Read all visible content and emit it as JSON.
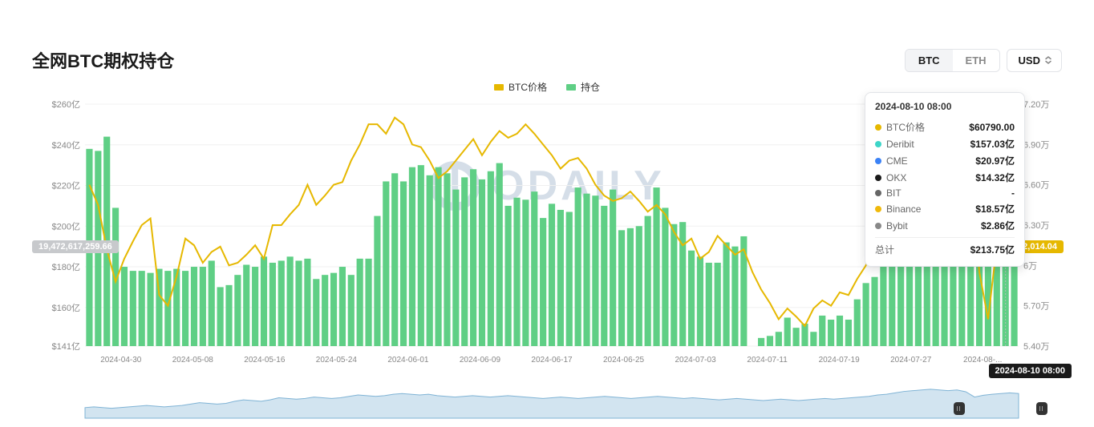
{
  "title": "全网BTC期权持仓",
  "segments": {
    "btc": "BTC",
    "eth": "ETH"
  },
  "active_segment": "btc",
  "currency": {
    "label": "USD"
  },
  "legend": {
    "price_label": "BTC价格",
    "oi_label": "持仓"
  },
  "colors": {
    "bar": "#5fcf85",
    "line": "#e6b800",
    "grid": "#f0f0f0",
    "axis_text": "#888",
    "left_badge_bg": "#c7c9cc",
    "right_badge_bg": "#e6b800",
    "tooltip_border": "#e2e4e8",
    "watermark": "#5a7fa6",
    "brush_area": "#7fb3d5"
  },
  "left_axis": {
    "ticks": [
      "$141亿",
      "$160亿",
      "$180亿",
      "$200亿",
      "$220亿",
      "$240亿",
      "$260亿"
    ],
    "min": 141,
    "max": 260
  },
  "right_axis": {
    "ticks": [
      "5.40万",
      "5.70万",
      "6万",
      "6.30万",
      "6.60万",
      "6.90万",
      "7.20万"
    ],
    "min": 5.4,
    "max": 7.2
  },
  "x_axis_labels": [
    "2024-04-30",
    "2024-05-08",
    "2024-05-16",
    "2024-05-24",
    "2024-06-01",
    "2024-06-09",
    "2024-06-17",
    "2024-06-25",
    "2024-07-03",
    "2024-07-11",
    "2024-07-19",
    "2024-07-27",
    "2024-08-..."
  ],
  "left_badge": "19,472,617,259.66",
  "right_badge": "62,014.04",
  "x_hover_label": "2024-08-10 08:00",
  "bars_values": [
    238,
    237,
    244,
    209,
    180,
    178,
    178,
    177,
    179,
    178,
    179,
    178,
    180,
    180,
    183,
    170,
    171,
    176,
    181,
    180,
    185,
    182,
    183,
    185,
    183,
    184,
    174,
    176,
    177,
    180,
    176,
    184,
    184,
    205,
    222,
    226,
    222,
    229,
    230,
    225,
    229,
    226,
    218,
    224,
    228,
    223,
    227,
    231,
    210,
    214,
    213,
    217,
    204,
    211,
    208,
    207,
    219,
    216,
    215,
    210,
    218,
    198,
    199,
    200,
    205,
    219,
    209,
    201,
    202,
    188,
    185,
    182,
    182,
    192,
    190,
    195,
    141,
    145,
    146,
    148,
    155,
    150,
    152,
    148,
    156,
    154,
    156,
    154,
    164,
    172,
    175,
    190,
    195,
    208,
    204,
    210,
    218,
    218,
    216,
    220,
    222,
    222,
    215,
    232,
    217,
    231,
    214
  ],
  "line_values": [
    6.6,
    6.45,
    6.12,
    5.88,
    6.05,
    6.18,
    6.3,
    6.35,
    5.78,
    5.7,
    5.92,
    6.2,
    6.15,
    6.02,
    6.1,
    6.14,
    6.0,
    6.02,
    6.08,
    6.15,
    6.05,
    6.3,
    6.3,
    6.38,
    6.45,
    6.6,
    6.45,
    6.52,
    6.6,
    6.62,
    6.78,
    6.9,
    7.05,
    7.05,
    6.98,
    7.1,
    7.05,
    6.9,
    6.88,
    6.78,
    6.65,
    6.7,
    6.78,
    6.86,
    6.94,
    6.82,
    6.92,
    7.0,
    6.95,
    6.98,
    7.05,
    6.98,
    6.9,
    6.82,
    6.72,
    6.78,
    6.8,
    6.72,
    6.6,
    6.52,
    6.48,
    6.5,
    6.55,
    6.48,
    6.4,
    6.45,
    6.38,
    6.25,
    6.15,
    6.2,
    6.05,
    6.1,
    6.22,
    6.15,
    6.08,
    6.12,
    5.95,
    5.82,
    5.72,
    5.6,
    5.68,
    5.62,
    5.55,
    5.68,
    5.74,
    5.7,
    5.8,
    5.78,
    5.9,
    6.0,
    6.25,
    6.38,
    6.52,
    6.62,
    6.58,
    6.55,
    6.68,
    6.8,
    6.82,
    6.78,
    6.8,
    6.72,
    5.95,
    5.6,
    6.15,
    6.1,
    6.2
  ],
  "tooltip": {
    "date": "2024-08-10 08:00",
    "rows": [
      {
        "label": "BTC价格",
        "value": "$60790.00",
        "dot": "#e6b800"
      },
      {
        "label": "Deribit",
        "value": "$157.03亿",
        "dot": "#3dd5c8"
      },
      {
        "label": "CME",
        "value": "$20.97亿",
        "dot": "#3b82f6"
      },
      {
        "label": "OKX",
        "value": "$14.32亿",
        "dot": "#1a1a1a"
      },
      {
        "label": "BIT",
        "value": "-",
        "dot": "#666666"
      },
      {
        "label": "Binance",
        "value": "$18.57亿",
        "dot": "#f0b90b"
      },
      {
        "label": "Bybit",
        "value": "$2.86亿",
        "dot": "#888888"
      }
    ],
    "total_label": "总计",
    "total_value": "$213.75亿"
  },
  "watermark_text": "ODAILY",
  "brush_values": [
    0.3,
    0.32,
    0.3,
    0.28,
    0.3,
    0.32,
    0.34,
    0.36,
    0.34,
    0.32,
    0.34,
    0.36,
    0.4,
    0.44,
    0.42,
    0.4,
    0.42,
    0.48,
    0.52,
    0.5,
    0.48,
    0.52,
    0.58,
    0.56,
    0.54,
    0.56,
    0.6,
    0.58,
    0.56,
    0.58,
    0.62,
    0.66,
    0.64,
    0.62,
    0.64,
    0.68,
    0.7,
    0.68,
    0.66,
    0.68,
    0.64,
    0.62,
    0.6,
    0.62,
    0.64,
    0.62,
    0.6,
    0.62,
    0.64,
    0.62,
    0.6,
    0.58,
    0.56,
    0.58,
    0.6,
    0.58,
    0.56,
    0.58,
    0.6,
    0.62,
    0.6,
    0.58,
    0.56,
    0.58,
    0.6,
    0.62,
    0.6,
    0.58,
    0.56,
    0.58,
    0.56,
    0.54,
    0.52,
    0.54,
    0.56,
    0.54,
    0.52,
    0.5,
    0.52,
    0.54,
    0.52,
    0.5,
    0.52,
    0.54,
    0.56,
    0.54,
    0.56,
    0.58,
    0.6,
    0.62,
    0.66,
    0.68,
    0.72,
    0.76,
    0.78,
    0.8,
    0.82,
    0.8,
    0.78,
    0.8,
    0.75,
    0.6,
    0.65,
    0.68,
    0.7,
    0.72,
    0.7
  ],
  "brush_handle_left_pct": 89.5,
  "brush_handle_right_pct": 97.5
}
